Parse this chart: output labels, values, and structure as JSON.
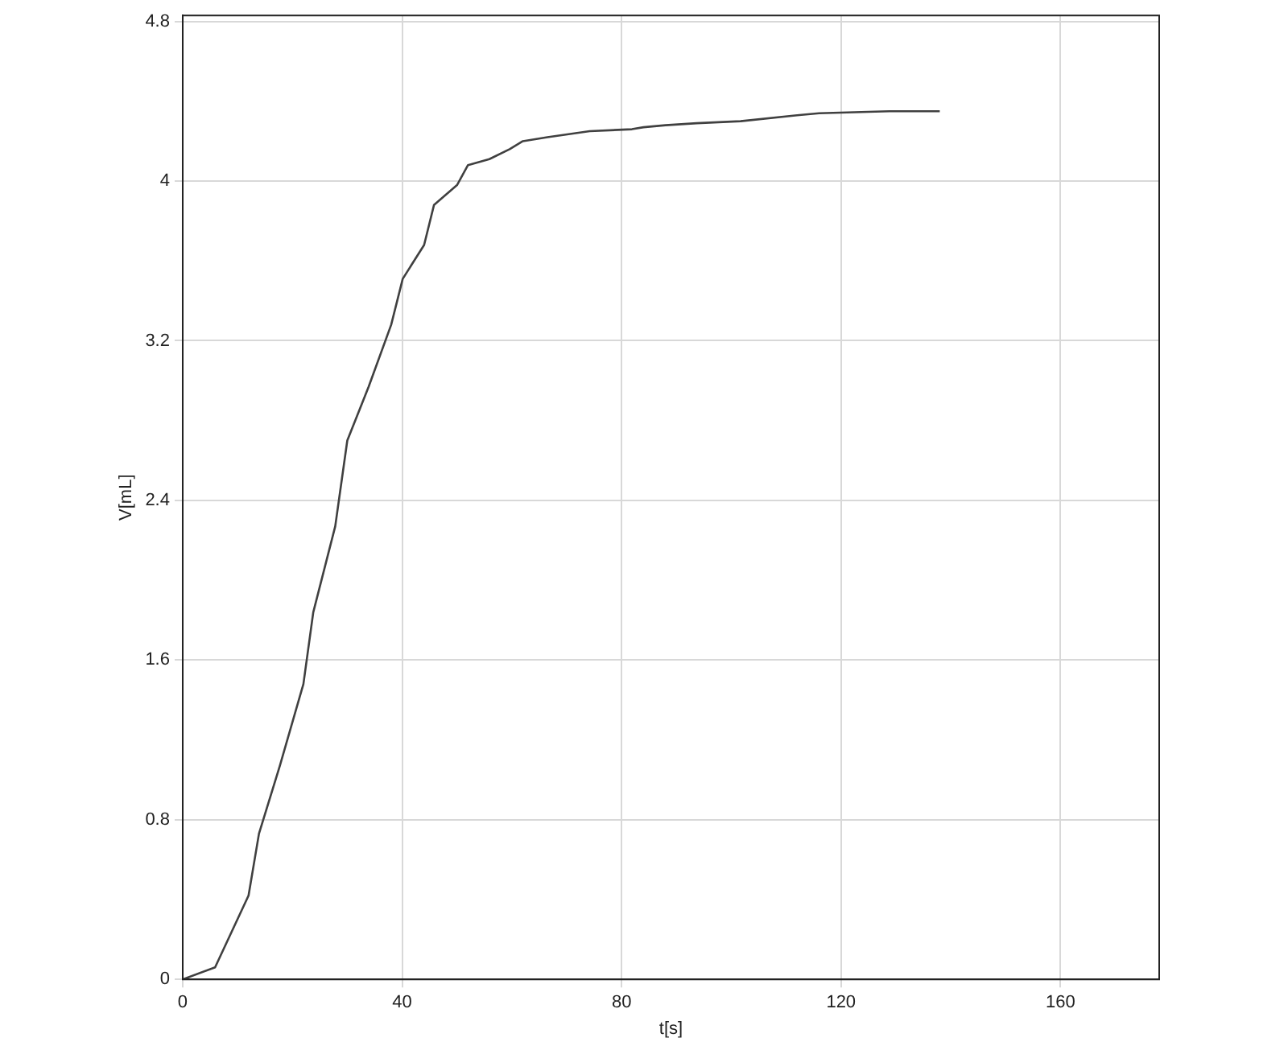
{
  "chart_data": {
    "type": "line",
    "xlabel": "t[s]",
    "ylabel": "V[mL]",
    "x": [
      0,
      5.9,
      12,
      13.9,
      17.7,
      22,
      23.8,
      27.8,
      30,
      33.9,
      38,
      40.1,
      44,
      45.8,
      50,
      52,
      55.9,
      59.6,
      62,
      66.5,
      74.2,
      81.9,
      84,
      88,
      93.7,
      101.7,
      112,
      116,
      128.8,
      138
    ],
    "values": [
      0,
      0.06,
      0.42,
      0.73,
      1.07,
      1.48,
      1.84,
      2.27,
      2.7,
      2.97,
      3.28,
      3.51,
      3.68,
      3.88,
      3.98,
      4.08,
      4.11,
      4.16,
      4.2,
      4.22,
      4.25,
      4.26,
      4.27,
      4.28,
      4.29,
      4.3,
      4.33,
      4.34,
      4.35,
      4.35
    ],
    "color": "#404040",
    "xlim": [
      0,
      178
    ],
    "xticks": [
      0,
      40,
      80,
      120,
      160
    ],
    "ylim": [
      0,
      4.83
    ],
    "yticks": [
      0,
      0.8,
      1.6,
      2.4,
      3.2,
      4,
      4.8
    ],
    "grid": true,
    "legend": false,
    "marker": "none",
    "line_style": "solid"
  }
}
